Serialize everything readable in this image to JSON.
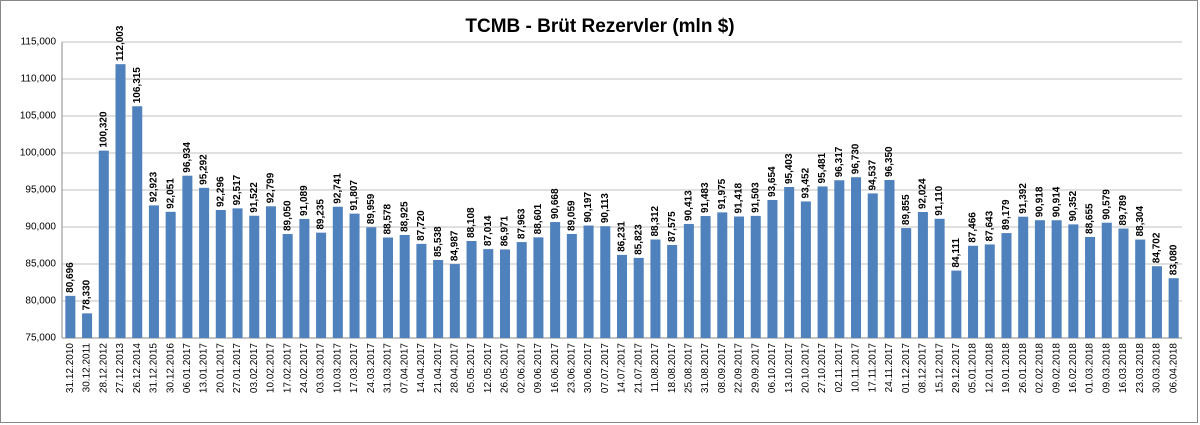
{
  "chart_data": {
    "type": "bar",
    "title": "TCMB - Brüt Rezervler (mln $)",
    "categories": [
      "31.12.2010",
      "30.12.2011",
      "28.12.2012",
      "27.12.2013",
      "26.12.2014",
      "31.12.2015",
      "30.12.2016",
      "06.01.2017",
      "13.01.2017",
      "20.01.2017",
      "27.01.2017",
      "03.02.2017",
      "10.02.2017",
      "17.02.2017",
      "24.02.2017",
      "03.03.2017",
      "10.03.2017",
      "17.03.2017",
      "24.03.2017",
      "31.03.2017",
      "07.04.2017",
      "14.04.2017",
      "21.04.2017",
      "28.04.2017",
      "05.05.2017",
      "12.05.2017",
      "26.05.2017",
      "02.06.2017",
      "09.06.2017",
      "16.06.2017",
      "23.06.2017",
      "30.06.2017",
      "07.07.2017",
      "14.07.2017",
      "21.07.2017",
      "11.08.2017",
      "18.08.2017",
      "25.08.2017",
      "31.08.2017",
      "08.09.2017",
      "22.09.2017",
      "29.09.2017",
      "06.10.2017",
      "13.10.2017",
      "20.10.2017",
      "27.10.2017",
      "02.11.2017",
      "10.11.2017",
      "17.11.2017",
      "24.11.2017",
      "01.12.2017",
      "08.12.2017",
      "15.12.2017",
      "29.12.2017",
      "05.01.2018",
      "12.01.2018",
      "19.01.2018",
      "26.01.2018",
      "02.02.2018",
      "09.02.2018",
      "16.02.2018",
      "01.03.2018",
      "09.03.2018",
      "16.03.2018",
      "23.03.2018",
      "30.03.2018",
      "06.04.2018"
    ],
    "values": [
      80696,
      78330,
      100320,
      112003,
      106315,
      92923,
      92051,
      96934,
      95292,
      92296,
      92517,
      91522,
      92799,
      89050,
      91089,
      89235,
      92741,
      91807,
      89959,
      88578,
      88925,
      87720,
      85538,
      84987,
      88108,
      87014,
      86971,
      87963,
      88601,
      90668,
      89059,
      90197,
      90113,
      86231,
      85823,
      88312,
      87575,
      90413,
      91483,
      91975,
      91418,
      91503,
      93654,
      95403,
      93452,
      95481,
      96317,
      96730,
      94537,
      96350,
      89855,
      92024,
      91110,
      84111,
      87466,
      87643,
      89179,
      91392,
      90918,
      90914,
      90352,
      88655,
      90579,
      89789,
      88304,
      84702,
      83080
    ],
    "value_labels": [
      "80,696",
      "78,330",
      "100,320",
      "112,003",
      "106,315",
      "92,923",
      "92,051",
      "96,934",
      "95,292",
      "92,296",
      "92,517",
      "91,522",
      "92,799",
      "89,050",
      "91,089",
      "89,235",
      "92,741",
      "91,807",
      "89,959",
      "88,578",
      "88,925",
      "87,720",
      "85,538",
      "84,987",
      "88,108",
      "87,014",
      "86,971",
      "87,963",
      "88,601",
      "90,668",
      "89,059",
      "90,197",
      "90,113",
      "86,231",
      "85,823",
      "88,312",
      "87,575",
      "90,413",
      "91,483",
      "91,975",
      "91,418",
      "91,503",
      "93,654",
      "95,403",
      "93,452",
      "95,481",
      "96,317",
      "96,730",
      "94,537",
      "96,350",
      "89,855",
      "92,024",
      "91,110",
      "84,111",
      "87,466",
      "87,643",
      "89,179",
      "91,392",
      "90,918",
      "90,914",
      "90,352",
      "88,655",
      "90,579",
      "89,789",
      "88,304",
      "84,702",
      "83,080"
    ],
    "color": "#4f81bd",
    "ylim": [
      75000,
      115000
    ],
    "yticks": [
      {
        "value": 75000,
        "label": "75,000"
      },
      {
        "value": 80000,
        "label": "80,000"
      },
      {
        "value": 85000,
        "label": "85,000"
      },
      {
        "value": 90000,
        "label": "90,000"
      },
      {
        "value": 95000,
        "label": "95,000"
      },
      {
        "value": 100000,
        "label": "100,000"
      },
      {
        "value": 105000,
        "label": "105,000"
      },
      {
        "value": 110000,
        "label": "110,000"
      },
      {
        "value": 115000,
        "label": "115,000"
      }
    ],
    "grid": true
  }
}
